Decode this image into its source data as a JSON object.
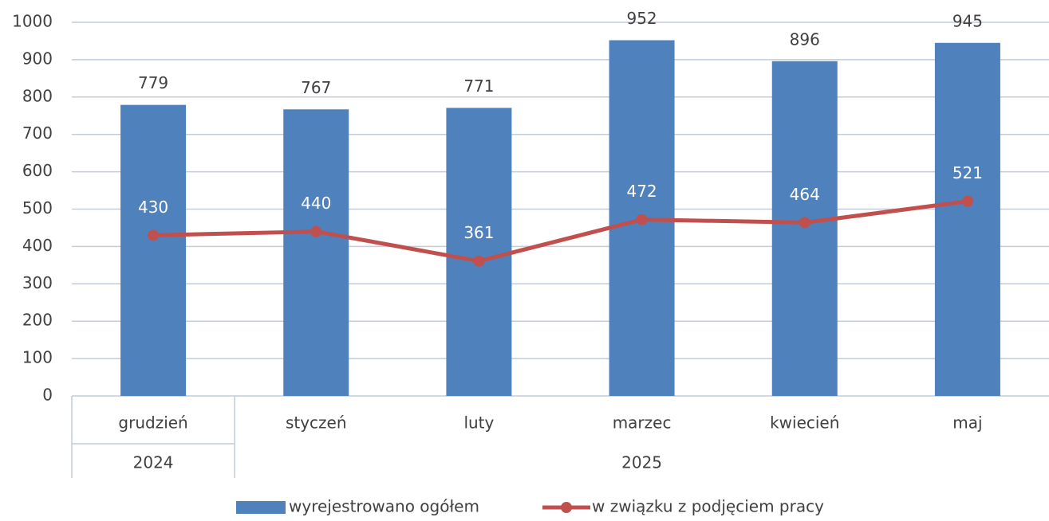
{
  "chart_data": {
    "type": "bar_line",
    "categories": [
      "grudzień",
      "styczeń",
      "luty",
      "marzec",
      "kwiecień",
      "maj"
    ],
    "category_groups": [
      {
        "label": "2024",
        "count": 1
      },
      {
        "label": "2025",
        "count": 5
      }
    ],
    "series": [
      {
        "name": "wyrejestrowano ogółem",
        "type": "bar",
        "color": "#4f81bd",
        "values": [
          779,
          767,
          771,
          952,
          896,
          945
        ]
      },
      {
        "name": "w związku z podjęciem pracy",
        "type": "line",
        "color": "#c0504d",
        "values": [
          430,
          440,
          361,
          472,
          464,
          521
        ]
      }
    ],
    "ylim": [
      0,
      1000
    ],
    "yticks": [
      0,
      100,
      200,
      300,
      400,
      500,
      600,
      700,
      800,
      900,
      1000
    ],
    "grid": true,
    "legend": "bottom"
  }
}
